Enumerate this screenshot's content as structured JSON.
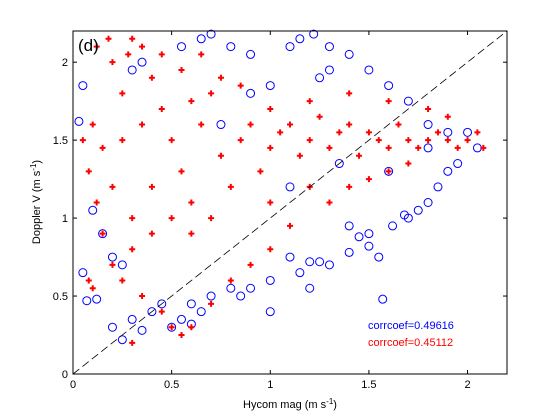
{
  "chart_data": {
    "type": "scatter",
    "panel_label": "(d)",
    "xlabel": "Hycom mag (m s",
    "xlabel_sup": "-1",
    "xlabel_close": ")",
    "ylabel": "Doppler V (m s",
    "ylabel_sup": "-1",
    "ylabel_close": ")",
    "xlim": [
      0,
      2.2
    ],
    "ylim": [
      0,
      2.2
    ],
    "xticks": [
      0,
      0.5,
      1,
      1.5,
      2
    ],
    "yticks": [
      0,
      0.5,
      1,
      1.5,
      2
    ],
    "xtick_labels": [
      "0",
      "0.5",
      "1",
      "1.5",
      "2"
    ],
    "ytick_labels": [
      "0",
      "0.5",
      "1",
      "1.5",
      "2"
    ],
    "reference_line": {
      "style": "dashed",
      "color": "#000000",
      "x": [
        0,
        2.2
      ],
      "y": [
        0,
        2.2
      ]
    },
    "series": [
      {
        "marker": "open-circle",
        "color": "#0000ff",
        "points": [
          [
            0.05,
            1.85
          ],
          [
            0.03,
            1.62
          ],
          [
            0.05,
            0.65
          ],
          [
            0.07,
            0.47
          ],
          [
            0.12,
            0.48
          ],
          [
            0.2,
            0.3
          ],
          [
            0.25,
            0.22
          ],
          [
            0.3,
            0.35
          ],
          [
            0.35,
            0.28
          ],
          [
            0.5,
            0.3
          ],
          [
            0.6,
            0.32
          ],
          [
            0.7,
            0.5
          ],
          [
            0.8,
            0.55
          ],
          [
            0.85,
            0.5
          ],
          [
            0.9,
            0.55
          ],
          [
            1.0,
            0.6
          ],
          [
            1.1,
            0.75
          ],
          [
            1.2,
            0.72
          ],
          [
            1.3,
            0.7
          ],
          [
            1.4,
            0.78
          ],
          [
            1.5,
            0.82
          ],
          [
            1.55,
            0.75
          ],
          [
            1.57,
            0.48
          ],
          [
            0.55,
            2.1
          ],
          [
            0.65,
            2.15
          ],
          [
            0.7,
            2.18
          ],
          [
            0.8,
            2.1
          ],
          [
            0.9,
            2.05
          ],
          [
            1.1,
            2.1
          ],
          [
            1.15,
            2.15
          ],
          [
            1.22,
            2.18
          ],
          [
            1.3,
            2.1
          ],
          [
            1.4,
            2.05
          ],
          [
            1.5,
            1.95
          ],
          [
            1.6,
            1.85
          ],
          [
            1.7,
            1.75
          ],
          [
            1.8,
            1.6
          ],
          [
            1.9,
            1.55
          ],
          [
            2.0,
            1.55
          ],
          [
            1.7,
            1.0
          ],
          [
            1.75,
            1.05
          ],
          [
            1.8,
            1.1
          ],
          [
            1.85,
            1.2
          ],
          [
            1.9,
            1.3
          ],
          [
            1.95,
            1.35
          ],
          [
            2.05,
            1.45
          ],
          [
            1.4,
            0.95
          ],
          [
            1.5,
            0.9
          ],
          [
            1.3,
            1.95
          ],
          [
            1.25,
            1.9
          ],
          [
            1.0,
            0.4
          ],
          [
            1.2,
            0.55
          ],
          [
            0.4,
            0.4
          ],
          [
            0.45,
            0.45
          ],
          [
            0.25,
            0.7
          ],
          [
            0.2,
            0.75
          ],
          [
            0.1,
            1.05
          ],
          [
            0.15,
            0.9
          ],
          [
            0.35,
            2.0
          ],
          [
            0.3,
            1.95
          ],
          [
            1.8,
            1.45
          ],
          [
            1.6,
            1.3
          ],
          [
            0.9,
            1.8
          ],
          [
            1.0,
            1.85
          ],
          [
            0.75,
            1.6
          ],
          [
            1.1,
            1.2
          ],
          [
            1.35,
            1.35
          ],
          [
            0.6,
            0.45
          ],
          [
            0.65,
            0.4
          ],
          [
            0.55,
            0.35
          ],
          [
            1.45,
            0.88
          ],
          [
            1.62,
            0.95
          ],
          [
            1.68,
            1.02
          ],
          [
            1.25,
            0.72
          ],
          [
            1.15,
            0.65
          ]
        ]
      },
      {
        "marker": "plus",
        "color": "#ff0000",
        "points": [
          [
            0.05,
            1.5
          ],
          [
            0.08,
            1.3
          ],
          [
            0.1,
            1.6
          ],
          [
            0.12,
            1.1
          ],
          [
            0.15,
            1.45
          ],
          [
            0.2,
            2.0
          ],
          [
            0.25,
            1.8
          ],
          [
            0.3,
            2.15
          ],
          [
            0.35,
            2.1
          ],
          [
            0.4,
            1.9
          ],
          [
            0.45,
            1.7
          ],
          [
            0.5,
            1.5
          ],
          [
            0.55,
            1.3
          ],
          [
            0.6,
            1.1
          ],
          [
            0.65,
            1.6
          ],
          [
            0.7,
            1.8
          ],
          [
            0.75,
            1.4
          ],
          [
            0.8,
            1.2
          ],
          [
            0.85,
            1.5
          ],
          [
            0.9,
            1.6
          ],
          [
            0.95,
            1.3
          ],
          [
            1.0,
            1.45
          ],
          [
            1.05,
            1.55
          ],
          [
            1.1,
            1.6
          ],
          [
            1.15,
            1.4
          ],
          [
            1.2,
            1.5
          ],
          [
            1.25,
            1.65
          ],
          [
            1.3,
            1.45
          ],
          [
            1.35,
            1.55
          ],
          [
            1.4,
            1.6
          ],
          [
            1.45,
            1.4
          ],
          [
            1.5,
            1.55
          ],
          [
            1.55,
            1.5
          ],
          [
            1.6,
            1.45
          ],
          [
            1.65,
            1.6
          ],
          [
            1.7,
            1.5
          ],
          [
            1.75,
            1.45
          ],
          [
            1.8,
            1.5
          ],
          [
            1.85,
            1.55
          ],
          [
            1.9,
            1.5
          ],
          [
            1.95,
            1.45
          ],
          [
            2.0,
            1.5
          ],
          [
            2.05,
            1.55
          ],
          [
            2.08,
            1.45
          ],
          [
            0.2,
            0.7
          ],
          [
            0.25,
            0.6
          ],
          [
            0.3,
            0.8
          ],
          [
            0.35,
            0.5
          ],
          [
            0.4,
            0.9
          ],
          [
            0.45,
            0.4
          ],
          [
            0.5,
            0.3
          ],
          [
            0.55,
            0.25
          ],
          [
            0.6,
            0.3
          ],
          [
            0.7,
            0.45
          ],
          [
            0.8,
            0.6
          ],
          [
            0.9,
            0.7
          ],
          [
            1.0,
            0.8
          ],
          [
            1.1,
            0.95
          ],
          [
            0.1,
            0.55
          ],
          [
            0.08,
            0.6
          ],
          [
            0.3,
            0.2
          ],
          [
            0.5,
            1.0
          ],
          [
            0.6,
            0.9
          ],
          [
            0.7,
            1.0
          ],
          [
            0.4,
            1.2
          ],
          [
            0.3,
            1.0
          ],
          [
            0.2,
            1.2
          ],
          [
            0.15,
            0.9
          ],
          [
            0.25,
            1.5
          ],
          [
            0.35,
            1.6
          ],
          [
            0.45,
            2.05
          ],
          [
            0.55,
            1.95
          ],
          [
            0.6,
            1.75
          ],
          [
            0.65,
            2.05
          ],
          [
            0.75,
            1.9
          ],
          [
            0.85,
            1.85
          ],
          [
            1.0,
            1.7
          ],
          [
            1.2,
            1.75
          ],
          [
            1.4,
            1.8
          ],
          [
            1.6,
            1.75
          ],
          [
            1.8,
            1.7
          ],
          [
            1.9,
            1.65
          ],
          [
            1.0,
            1.1
          ],
          [
            1.2,
            1.2
          ],
          [
            1.3,
            1.1
          ],
          [
            1.4,
            1.2
          ],
          [
            1.5,
            1.25
          ],
          [
            1.6,
            1.3
          ],
          [
            1.7,
            1.35
          ],
          [
            0.12,
            2.1
          ],
          [
            0.18,
            2.15
          ],
          [
            0.28,
            2.05
          ]
        ]
      }
    ],
    "annotations": [
      {
        "text": "corrcoef=0.49616",
        "color": "#0000ff"
      },
      {
        "text": "corrcoef=0.45112",
        "color": "#ff0000"
      }
    ]
  }
}
